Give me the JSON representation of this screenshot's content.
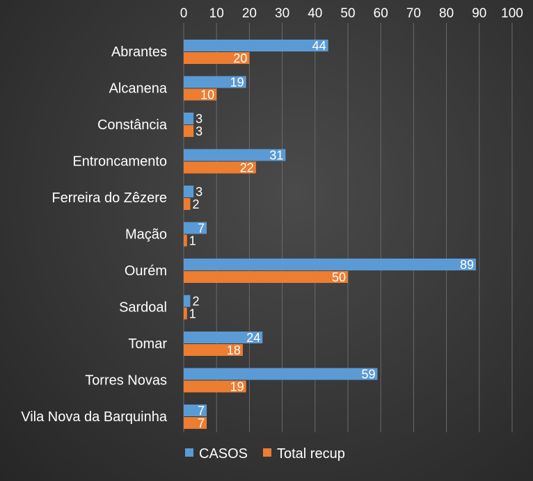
{
  "chart_data": {
    "type": "bar",
    "orientation": "horizontal",
    "categories": [
      "Abrantes",
      "Alcanena",
      "Constância",
      "Entroncamento",
      "Ferreira do Zêzere",
      "Mação",
      "Ourém",
      "Sardoal",
      "Tomar",
      "Torres Novas",
      "Vila Nova da Barquinha"
    ],
    "series": [
      {
        "name": "CASOS",
        "color": "#5b9bd5",
        "values": [
          44,
          19,
          3,
          31,
          3,
          7,
          89,
          2,
          24,
          59,
          7
        ]
      },
      {
        "name": "Total recup",
        "color": "#ed7d31",
        "values": [
          20,
          10,
          3,
          22,
          2,
          1,
          50,
          1,
          18,
          19,
          7
        ]
      }
    ],
    "xlim": [
      0,
      100
    ],
    "xticks": [
      0,
      10,
      20,
      30,
      40,
      50,
      60,
      70,
      80,
      90,
      100
    ],
    "x_axis_position": "top",
    "grid": true,
    "legend_position": "bottom",
    "data_labels": true,
    "title": "",
    "xlabel": "",
    "ylabel": ""
  }
}
